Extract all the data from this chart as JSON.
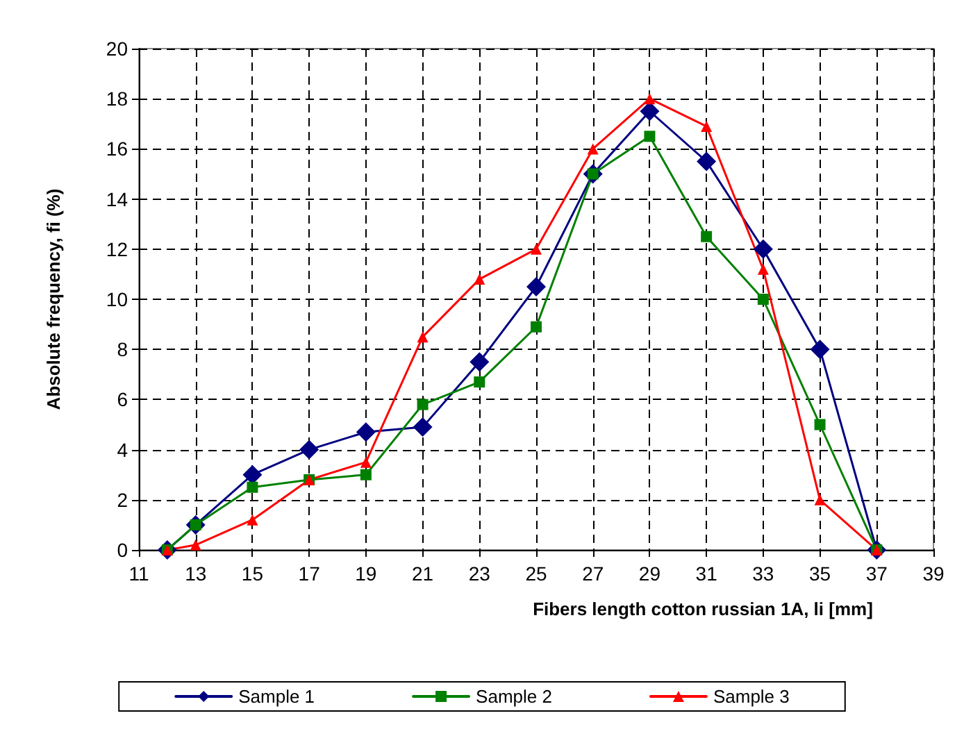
{
  "chart_data": {
    "type": "line",
    "xlabel": "Fibers length cotton russian 1A, li [mm]",
    "ylabel": "Absolute frequency, fi (%)",
    "x": [
      12,
      13,
      15,
      17,
      19,
      21,
      23,
      25,
      27,
      29,
      31,
      33,
      35,
      37
    ],
    "series": [
      {
        "name": "Sample 1",
        "color": "#000080",
        "marker": "diamond",
        "values": [
          0,
          1,
          3,
          4,
          4.7,
          4.9,
          7.5,
          10.5,
          15,
          17.5,
          15.5,
          12,
          8,
          0
        ]
      },
      {
        "name": "Sample 2",
        "color": "#008000",
        "marker": "square",
        "values": [
          0,
          1,
          2.5,
          2.8,
          3,
          5.8,
          6.7,
          8.9,
          15,
          16.5,
          12.5,
          10,
          5,
          0
        ]
      },
      {
        "name": "Sample 3",
        "color": "#ff0000",
        "marker": "triangle",
        "values": [
          0,
          0.2,
          1.2,
          2.8,
          3.5,
          8.5,
          10.8,
          12,
          16,
          18,
          16.9,
          11.2,
          2,
          0
        ]
      }
    ],
    "xlim": [
      11,
      39
    ],
    "xticks": [
      11,
      13,
      15,
      17,
      19,
      21,
      23,
      25,
      27,
      29,
      31,
      33,
      35,
      37,
      39
    ],
    "ylim": [
      0,
      20
    ],
    "yticks": [
      0,
      2,
      4,
      6,
      8,
      10,
      12,
      14,
      16,
      18,
      20
    ],
    "grid": true,
    "legend": "bottom",
    "line_style": "solid"
  }
}
